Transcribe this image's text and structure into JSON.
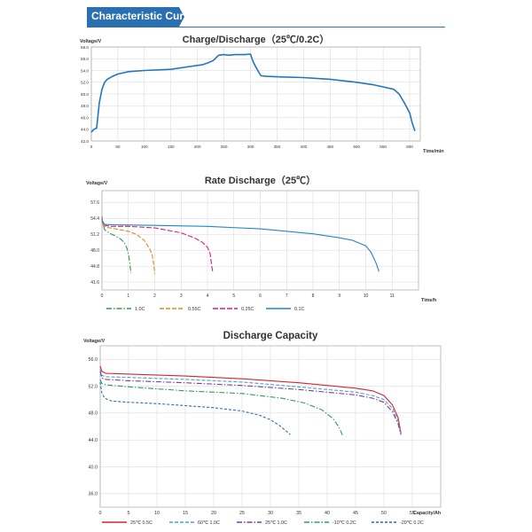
{
  "section_title": "Characteristic Curve",
  "chart_data": [
    {
      "type": "line",
      "title": "Charge/Discharge（25℃/0.2C）",
      "ylabel": "Voltage/V",
      "xlabel": "Time/min",
      "ylim": [
        42.0,
        58.0
      ],
      "xlim": [
        0,
        620
      ],
      "yticks": [
        42.0,
        44.0,
        46.0,
        48.0,
        50.0,
        52.0,
        54.0,
        56.0,
        58.0
      ],
      "ytick_labels": [
        "42.0",
        "44.0",
        "46.0",
        "48.0",
        "50.0",
        "52.0",
        "54.0",
        "56.0",
        "58.0"
      ],
      "xticks": [
        0,
        50,
        100,
        150,
        200,
        250,
        300,
        350,
        400,
        450,
        500,
        550,
        600
      ],
      "xtick_labels": [
        "0",
        "50",
        "100",
        "150",
        "200",
        "250",
        "300",
        "350",
        "400",
        "450",
        "500",
        "550",
        "600"
      ],
      "grid": true,
      "series": [
        {
          "color": "#1f77c0",
          "x": [
            0,
            5,
            10,
            15,
            20,
            25,
            30,
            40,
            50,
            70,
            100,
            150,
            180,
            210,
            220,
            230,
            240,
            250,
            260,
            270,
            280,
            290,
            300,
            305,
            310,
            315,
            320,
            330,
            360,
            400,
            450,
            500,
            530,
            550,
            560,
            570,
            580,
            590,
            600,
            605,
            610
          ],
          "y": [
            43.5,
            44.0,
            44.2,
            48.5,
            50.8,
            52.0,
            52.5,
            53.0,
            53.4,
            53.8,
            54.0,
            54.2,
            54.6,
            55.0,
            55.3,
            55.7,
            56.6,
            56.7,
            56.6,
            56.7,
            56.7,
            56.7,
            56.8,
            55.5,
            54.6,
            53.8,
            53.1,
            53.0,
            52.9,
            52.8,
            52.5,
            52.0,
            51.6,
            51.2,
            51.0,
            50.8,
            50.0,
            48.5,
            46.8,
            45.0,
            43.7
          ]
        }
      ]
    },
    {
      "type": "line",
      "title": "Rate Discharge（25℃）",
      "ylabel": "Voltage/V",
      "xlabel": "Time/h",
      "ylim": [
        40.0,
        60.0
      ],
      "xlim": [
        0,
        12
      ],
      "yticks": [
        41.6,
        44.8,
        48.0,
        51.2,
        54.4,
        57.6
      ],
      "ytick_labels": [
        "41.6",
        "44.8",
        "48.0",
        "51.2",
        "54.4",
        "57.6"
      ],
      "xticks": [
        0,
        1,
        2,
        3,
        4,
        5,
        6,
        7,
        8,
        9,
        10,
        11
      ],
      "xtick_labels": [
        "0",
        "1",
        "2",
        "3",
        "4",
        "5",
        "6",
        "7",
        "8",
        "9",
        "10",
        "11"
      ],
      "grid": true,
      "legend": "bottom",
      "series": [
        {
          "name": "1.0C",
          "color": "#2e9a4b",
          "dash": "6,2,1.5,2",
          "x": [
            0,
            0.02,
            0.1,
            0.3,
            0.5,
            0.7,
            0.85,
            0.95,
            1.02,
            1.06,
            1.08,
            1.1
          ],
          "y": [
            54.8,
            53.6,
            52.1,
            51.4,
            50.9,
            50.3,
            49.5,
            48.3,
            46.8,
            45.4,
            44.3,
            43.4
          ]
        },
        {
          "name": "0.55C",
          "color": "#e8891d",
          "dash": "5,2",
          "x": [
            0,
            0.05,
            0.2,
            0.5,
            1.0,
            1.3,
            1.6,
            1.8,
            1.9,
            1.95,
            1.98,
            2.0
          ],
          "y": [
            54.5,
            52.9,
            52.6,
            52.3,
            51.8,
            51.2,
            50.0,
            48.4,
            47.1,
            45.6,
            44.4,
            43.2
          ]
        },
        {
          "name": "0.25C",
          "color": "#d3227a",
          "dash": "6,2",
          "x": [
            0,
            0.05,
            0.3,
            1.0,
            2.0,
            3.0,
            3.5,
            3.8,
            4.0,
            4.1,
            4.15,
            4.2
          ],
          "y": [
            54.4,
            53.1,
            52.8,
            52.8,
            52.5,
            51.5,
            50.5,
            49.6,
            48.6,
            47.3,
            45.2,
            43.5
          ]
        },
        {
          "name": "0.1C",
          "color": "#1f86c8",
          "dash": "",
          "x": [
            0,
            0.1,
            0.5,
            2.0,
            4.0,
            6.0,
            8.0,
            9.0,
            9.5,
            10.0,
            10.2,
            10.4,
            10.5
          ],
          "y": [
            54.0,
            53.2,
            53.1,
            53.0,
            52.8,
            52.3,
            51.3,
            50.5,
            50.0,
            48.9,
            47.6,
            45.3,
            43.7
          ]
        }
      ]
    },
    {
      "type": "line",
      "title": "Discharge Capacity",
      "ylabel": "Voltage/V",
      "xlabel": "Capacity/Ah",
      "ylim": [
        34.0,
        58.0
      ],
      "xlim": [
        0,
        60
      ],
      "yticks": [
        36.0,
        40.0,
        44.0,
        48.0,
        52.0,
        56.0
      ],
      "ytick_labels": [
        "36.0",
        "40.0",
        "44.0",
        "48.0",
        "52.0",
        "56.0"
      ],
      "xticks": [
        0,
        5,
        10,
        15,
        20,
        25,
        30,
        35,
        40,
        45,
        50,
        55
      ],
      "xtick_labels": [
        "0",
        "5",
        "10",
        "15",
        "20",
        "25",
        "30",
        "35",
        "40",
        "45",
        "50",
        "55"
      ],
      "grid": true,
      "legend": "bottom",
      "series": [
        {
          "name": "25℃ 0.5C",
          "color": "#d9242b",
          "dash": "",
          "x": [
            0,
            0.3,
            1,
            5,
            15,
            25,
            35,
            45,
            48,
            50,
            51.5,
            52.5,
            53
          ],
          "y": [
            55.0,
            54.2,
            53.9,
            53.8,
            53.5,
            53.1,
            52.5,
            51.7,
            51.3,
            50.6,
            49.2,
            47.3,
            45.0
          ]
        },
        {
          "name": "60℃ 1.0C",
          "color": "#4aa0dc",
          "dash": "4,2",
          "x": [
            0,
            0.3,
            1,
            5,
            15,
            25,
            35,
            45,
            48,
            50,
            51.5,
            52.5,
            53
          ],
          "y": [
            54.5,
            53.6,
            53.4,
            53.3,
            53.0,
            52.6,
            51.9,
            51.1,
            50.6,
            50.0,
            48.7,
            46.8,
            44.8
          ]
        },
        {
          "name": "25℃ 1.0C",
          "color": "#7a3f96",
          "dash": "6,2,1.5,2",
          "x": [
            0,
            0.3,
            1,
            5,
            15,
            25,
            35,
            45,
            48,
            50,
            51.5,
            52.5,
            53
          ],
          "y": [
            54.2,
            53.2,
            53.0,
            52.8,
            52.5,
            52.1,
            51.5,
            50.7,
            50.2,
            49.6,
            48.2,
            46.4,
            44.8
          ]
        },
        {
          "name": "-10℃ 0.2C",
          "color": "#2e9a6a",
          "dash": "6,2,1.5,2",
          "x": [
            0,
            0.3,
            1,
            5,
            15,
            25,
            32,
            36,
            39,
            41,
            42,
            42.7
          ],
          "y": [
            53.0,
            52.4,
            52.2,
            51.9,
            51.3,
            50.9,
            50.2,
            49.5,
            48.5,
            47.2,
            46.0,
            44.7
          ]
        },
        {
          "name": "-20℃ 0.2C",
          "color": "#2f6cb3",
          "dash": "3,2",
          "x": [
            0,
            0.3,
            0.8,
            2,
            5,
            10,
            15,
            20,
            25,
            28,
            30,
            31.5,
            32.7,
            33.5
          ],
          "y": [
            52.6,
            51.0,
            50.2,
            49.8,
            49.6,
            49.4,
            49.1,
            48.8,
            48.3,
            47.7,
            47.0,
            46.2,
            45.4,
            44.8
          ]
        }
      ]
    }
  ]
}
